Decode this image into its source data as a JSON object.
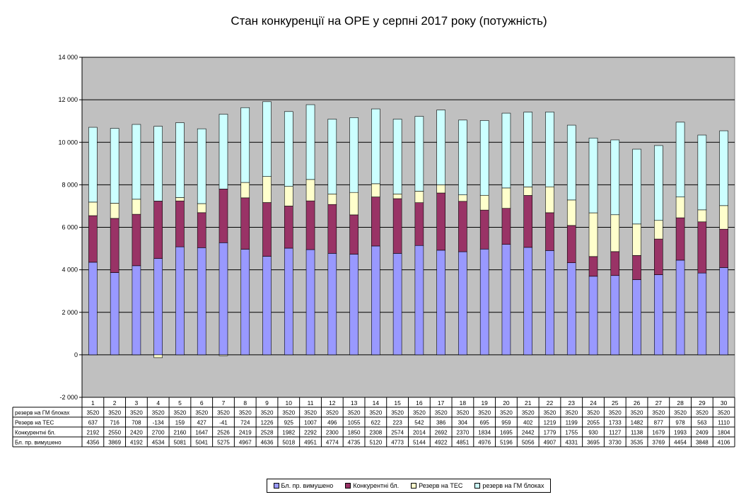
{
  "chart_data": {
    "type": "bar",
    "stacked": true,
    "title": "Стан конкуренції на ОРЕ  у серпні 2017 року (потужність)",
    "categories": [
      "1",
      "2",
      "3",
      "4",
      "5",
      "6",
      "7",
      "8",
      "9",
      "10",
      "11",
      "12",
      "13",
      "14",
      "15",
      "16",
      "17",
      "18",
      "19",
      "20",
      "21",
      "22",
      "23",
      "24",
      "25",
      "26",
      "27",
      "28",
      "29",
      "30"
    ],
    "ylim": [
      -2000,
      14000
    ],
    "yticks": [
      -2000,
      0,
      2000,
      4000,
      6000,
      8000,
      10000,
      12000,
      14000
    ],
    "ytick_labels": [
      "-2 000",
      "0",
      "2 000",
      "4 000",
      "6 000",
      "8 000",
      "10 000",
      "12 000",
      "14 000"
    ],
    "grid": true,
    "legend_position": "bottom",
    "series": [
      {
        "name": "Бл. пр. вимушено",
        "color": "#9999ff",
        "values": [
          4356,
          3869,
          4192,
          4534,
          5081,
          5041,
          5275,
          4967,
          4636,
          5018,
          4951,
          4774,
          4735,
          5120,
          4773,
          5144,
          4922,
          4851,
          4976,
          5196,
          5056,
          4907,
          4331,
          3695,
          3730,
          3535,
          3769,
          4454,
          3848,
          4106
        ]
      },
      {
        "name": "Конкурентні бл.",
        "color": "#993366",
        "values": [
          2192,
          2550,
          2420,
          2700,
          2160,
          1647,
          2526,
          2419,
          2528,
          1982,
          2292,
          2300,
          1850,
          2308,
          2574,
          2014,
          2692,
          2370,
          1834,
          1695,
          2442,
          1779,
          1755,
          930,
          1127,
          1138,
          1679,
          1993,
          2409,
          1804
        ]
      },
      {
        "name": "Резерв на ТЕС",
        "color": "#ffffcc",
        "values": [
          637,
          716,
          708,
          -134,
          159,
          427,
          -41,
          724,
          1226,
          925,
          1007,
          496,
          1055,
          622,
          223,
          542,
          386,
          304,
          695,
          959,
          402,
          1219,
          1199,
          2055,
          1733,
          1482,
          877,
          978,
          563,
          1110
        ]
      },
      {
        "name": "резерв на ГМ блоках",
        "color": "#ccffff",
        "values": [
          3520,
          3520,
          3520,
          3520,
          3520,
          3520,
          3520,
          3520,
          3520,
          3520,
          3520,
          3520,
          3520,
          3520,
          3520,
          3520,
          3520,
          3520,
          3520,
          3520,
          3520,
          3520,
          3520,
          3520,
          3520,
          3520,
          3520,
          3520,
          3520,
          3520
        ]
      }
    ],
    "table_rows": [
      {
        "label": "резерв на ГМ блоках",
        "series_index": 3
      },
      {
        "label": "Резерв на ТЕС",
        "series_index": 2
      },
      {
        "label": "Конкурентні бл.",
        "series_index": 1
      },
      {
        "label": "Бл. пр. вимушено",
        "series_index": 0
      }
    ]
  }
}
